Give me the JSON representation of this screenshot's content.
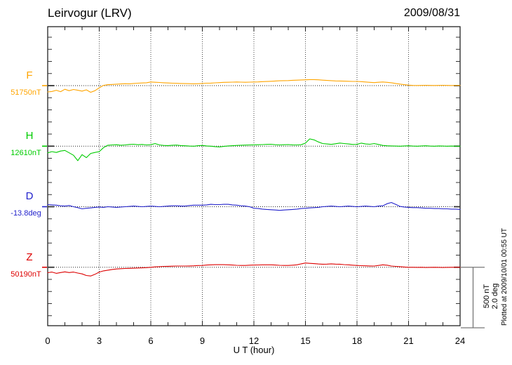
{
  "header": {
    "station": "Leirvogur (LRV)",
    "date": "2009/08/31"
  },
  "chart_data": {
    "type": "line",
    "title": "Leirvogur (LRV)",
    "date": "2009/08/31",
    "xlabel": "U T (hour)",
    "x_range": [
      0,
      24
    ],
    "x_ticks": [
      0,
      3,
      6,
      9,
      12,
      15,
      18,
      21,
      24
    ],
    "sample_step_hours": 0.25,
    "grid": {
      "vertical_dotted_every_hours": 3,
      "horizontal_dotted": "one baseline per series"
    },
    "scale_bar": {
      "label_nt": "500 nT",
      "label_deg": "2.0 deg",
      "nT": 500,
      "deg": 2.0
    },
    "plotted_at": "Plotted at 2009/10/01 00:55 UT",
    "series": [
      {
        "name": "F",
        "reference_label": "51750nT",
        "reference_value": 51750,
        "unit": "nT",
        "color": "#FFA500",
        "offsets": [
          -52,
          -48,
          -38,
          -50,
          -30,
          -42,
          -32,
          -38,
          -45,
          -35,
          -55,
          -42,
          -18,
          2,
          8,
          10,
          12,
          14,
          16,
          15,
          18,
          20,
          22,
          24,
          30,
          28,
          26,
          24,
          22,
          20,
          19,
          18,
          17,
          16,
          15,
          16,
          18,
          20,
          21,
          23,
          25,
          27,
          28,
          29,
          30,
          29,
          28,
          29,
          30,
          31,
          33,
          34,
          36,
          38,
          40,
          41,
          42,
          44,
          45,
          47,
          48,
          50,
          50,
          48,
          45,
          43,
          41,
          39,
          38,
          37,
          36,
          35,
          35,
          33,
          30,
          27,
          25,
          28,
          30,
          27,
          24,
          18,
          13,
          8,
          4,
          2,
          1,
          2,
          3,
          2,
          1,
          2,
          3,
          2,
          1,
          2,
          2
        ]
      },
      {
        "name": "H",
        "reference_label": "12610nT",
        "reference_value": 12610,
        "unit": "nT",
        "color": "#00CC00",
        "offsets": [
          -55,
          -45,
          -52,
          -40,
          -35,
          -55,
          -75,
          -120,
          -70,
          -95,
          -60,
          -52,
          -45,
          -12,
          8,
          10,
          12,
          8,
          10,
          14,
          16,
          12,
          14,
          10,
          12,
          22,
          10,
          6,
          5,
          8,
          9,
          5,
          3,
          1,
          0,
          4,
          6,
          2,
          0,
          -4,
          -6,
          -2,
          2,
          4,
          6,
          8,
          9,
          10,
          11,
          12,
          13,
          15,
          16,
          12,
          10,
          12,
          13,
          11,
          10,
          12,
          25,
          60,
          52,
          35,
          22,
          18,
          15,
          20,
          26,
          22,
          18,
          14,
          15,
          25,
          18,
          16,
          22,
          14,
          6,
          3,
          2,
          1,
          0,
          2,
          3,
          1,
          0,
          2,
          3,
          1,
          0,
          2,
          1,
          0,
          1,
          0,
          0
        ]
      },
      {
        "name": "D",
        "reference_label": "-13.8deg",
        "reference_value": -13.8,
        "unit": "deg",
        "color": "#2222CC",
        "offsets": [
          0.07,
          0.06,
          0.05,
          0.03,
          0.02,
          0.04,
          0.0,
          -0.03,
          -0.07,
          -0.05,
          -0.04,
          -0.02,
          -0.01,
          -0.02,
          0.0,
          -0.01,
          -0.02,
          -0.01,
          0.0,
          0.01,
          0.02,
          0.01,
          0.0,
          0.01,
          0.02,
          0.01,
          0.0,
          0.01,
          0.02,
          0.03,
          0.03,
          0.02,
          0.02,
          0.04,
          0.05,
          0.05,
          0.05,
          0.06,
          0.08,
          0.07,
          0.07,
          0.08,
          0.08,
          0.06,
          0.05,
          0.03,
          0.02,
          0.0,
          -0.05,
          -0.06,
          -0.08,
          -0.09,
          -0.1,
          -0.11,
          -0.12,
          -0.11,
          -0.1,
          -0.09,
          -0.08,
          -0.06,
          -0.05,
          -0.04,
          -0.03,
          -0.02,
          0.0,
          0.01,
          0.02,
          0.01,
          0.0,
          0.01,
          0.02,
          0.01,
          0.0,
          0.01,
          0.02,
          0.01,
          0.0,
          0.02,
          0.03,
          0.1,
          0.14,
          0.08,
          0.01,
          -0.01,
          -0.02,
          -0.03,
          -0.03,
          -0.04,
          -0.05,
          -0.05,
          -0.06,
          -0.06,
          -0.07,
          -0.07,
          -0.08,
          -0.08,
          -0.09
        ]
      },
      {
        "name": "Z",
        "reference_label": "50190nT",
        "reference_value": 50190,
        "unit": "nT",
        "color": "#DD0000",
        "offsets": [
          -45,
          -40,
          -50,
          -44,
          -38,
          -44,
          -40,
          -48,
          -55,
          -68,
          -72,
          -58,
          -40,
          -30,
          -24,
          -18,
          -14,
          -12,
          -10,
          -9,
          -8,
          -6,
          -5,
          -3,
          0,
          3,
          5,
          7,
          8,
          9,
          10,
          10,
          10,
          11,
          12,
          14,
          15,
          18,
          20,
          21,
          22,
          21,
          20,
          18,
          16,
          15,
          15,
          17,
          18,
          19,
          20,
          20,
          20,
          18,
          16,
          15,
          15,
          17,
          20,
          28,
          35,
          32,
          30,
          27,
          25,
          26,
          28,
          26,
          25,
          22,
          20,
          17,
          15,
          13,
          12,
          11,
          10,
          15,
          20,
          17,
          10,
          7,
          5,
          2,
          0,
          0,
          -1,
          0,
          -2,
          -1,
          0,
          -1,
          -2,
          -1,
          0,
          0,
          0
        ]
      }
    ]
  }
}
